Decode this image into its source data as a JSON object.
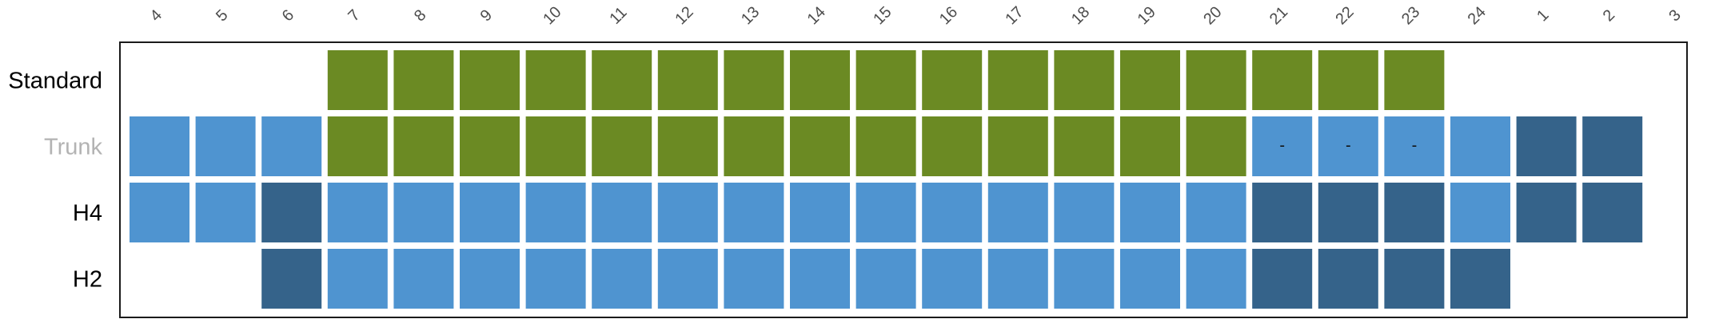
{
  "chart_data": {
    "type": "heatmap",
    "title": "",
    "xlabel": "",
    "ylabel": "",
    "x_categories": [
      "4",
      "5",
      "6",
      "7",
      "8",
      "9",
      "10",
      "11",
      "12",
      "13",
      "14",
      "15",
      "16",
      "17",
      "18",
      "19",
      "20",
      "21",
      "22",
      "23",
      "24",
      "1",
      "2",
      "3"
    ],
    "rows": [
      {
        "label": "Standard",
        "label_color": "#000000",
        "cells": [
          "",
          "",
          "",
          "green",
          "green",
          "green",
          "green",
          "green",
          "green",
          "green",
          "green",
          "green",
          "green",
          "green",
          "green",
          "green",
          "green",
          "green",
          "green",
          "green",
          "",
          "",
          "",
          ""
        ],
        "cell_labels": [
          "",
          "",
          "",
          "",
          "",
          "",
          "",
          "",
          "",
          "",
          "",
          "",
          "",
          "",
          "",
          "",
          "",
          "",
          "",
          "",
          "",
          "",
          "",
          ""
        ]
      },
      {
        "label": "Trunk",
        "label_color": "#b3b3b3",
        "cells": [
          "light",
          "light",
          "light",
          "green",
          "green",
          "green",
          "green",
          "green",
          "green",
          "green",
          "green",
          "green",
          "green",
          "green",
          "green",
          "green",
          "green",
          "light",
          "light",
          "light",
          "light",
          "dark",
          "dark",
          ""
        ],
        "cell_labels": [
          "",
          "",
          "",
          "",
          "",
          "",
          "",
          "",
          "",
          "",
          "",
          "",
          "",
          "",
          "",
          "",
          "",
          "-",
          "-",
          "-",
          "",
          "",
          "",
          ""
        ]
      },
      {
        "label": "H4",
        "label_color": "#000000",
        "cells": [
          "light",
          "light",
          "dark",
          "light",
          "light",
          "light",
          "light",
          "light",
          "light",
          "light",
          "light",
          "light",
          "light",
          "light",
          "light",
          "light",
          "light",
          "dark",
          "dark",
          "dark",
          "light",
          "dark",
          "dark",
          ""
        ],
        "cell_labels": [
          "",
          "",
          "",
          "",
          "",
          "",
          "",
          "",
          "",
          "",
          "",
          "",
          "",
          "",
          "",
          "",
          "",
          "",
          "",
          "",
          "",
          "",
          "",
          ""
        ]
      },
      {
        "label": "H2",
        "label_color": "#000000",
        "cells": [
          "",
          "",
          "dark",
          "light",
          "light",
          "light",
          "light",
          "light",
          "light",
          "light",
          "light",
          "light",
          "light",
          "light",
          "light",
          "light",
          "light",
          "dark",
          "dark",
          "dark",
          "dark",
          "",
          "",
          ""
        ],
        "cell_labels": [
          "",
          "",
          "",
          "",
          "",
          "",
          "",
          "",
          "",
          "",
          "",
          "",
          "",
          "",
          "",
          "",
          "",
          "",
          "",
          "",
          "",
          "",
          "",
          ""
        ]
      }
    ],
    "colors": {
      "green": "#6b8a23",
      "light": "#4f94d0",
      "dark": "#35638a"
    },
    "grid": false,
    "legend": "none"
  }
}
